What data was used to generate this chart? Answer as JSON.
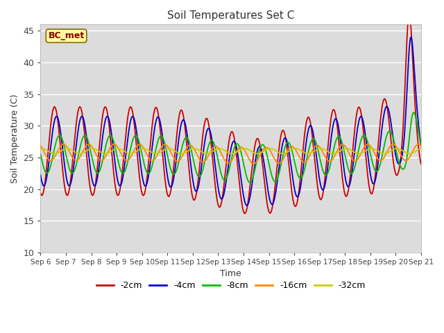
{
  "title": "Soil Temperatures Set C",
  "xlabel": "Time",
  "ylabel": "Soil Temperature (C)",
  "ylim": [
    10,
    46
  ],
  "yticks": [
    10,
    15,
    20,
    25,
    30,
    35,
    40,
    45
  ],
  "annotation": "BC_met",
  "legend_labels": [
    "-2cm",
    "-4cm",
    "-8cm",
    "-16cm",
    "-32cm"
  ],
  "legend_colors": [
    "#cc0000",
    "#0000cc",
    "#00bb00",
    "#ff8800",
    "#cccc00"
  ],
  "xtick_labels": [
    "Sep 6",
    "Sep 7",
    "Sep 8",
    "Sep 9",
    "Sep 10",
    "Sep 11",
    "Sep 12",
    "Sep 13",
    "Sep 14",
    "Sep 15",
    "Sep 16",
    "Sep 17",
    "Sep 18",
    "Sep 19",
    "Sep 20",
    "Sep 21"
  ]
}
